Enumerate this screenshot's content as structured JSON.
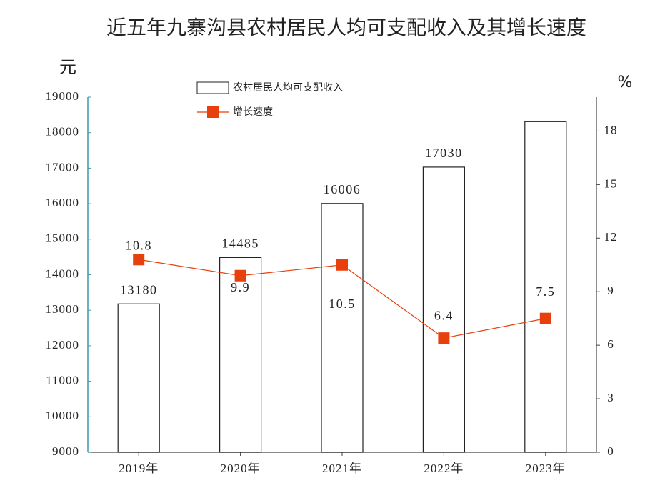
{
  "chart_data": {
    "type": "bar-line",
    "title": "近五年九寨沟县农村居民人均可支配收入及其增长速度",
    "y_unit": "元",
    "y2_unit": "%",
    "categories": [
      "2019年",
      "2020年",
      "2021年",
      "2022年",
      "2023年"
    ],
    "series": [
      {
        "name": "农村居民人均可支配收入",
        "type": "bar",
        "color": "#ffffff",
        "edge_color": "#222222",
        "values": [
          13180,
          14485,
          16006,
          17030,
          18310
        ],
        "value_labels": [
          "13180",
          "14485",
          "16006",
          "17030",
          null
        ]
      },
      {
        "name": "增长速度",
        "type": "line",
        "axis": "y2",
        "color": "#e8400c",
        "values": [
          10.8,
          9.9,
          10.5,
          6.4,
          7.5
        ]
      }
    ],
    "ylim": [
      9000,
      19000
    ],
    "yticks": [
      9000,
      10000,
      11000,
      12000,
      13000,
      14000,
      15000,
      16000,
      17000,
      18000,
      19000
    ],
    "y2lim": [
      0,
      19.9
    ],
    "y2ticks": [
      0,
      3,
      6,
      9,
      12,
      15,
      18
    ]
  }
}
